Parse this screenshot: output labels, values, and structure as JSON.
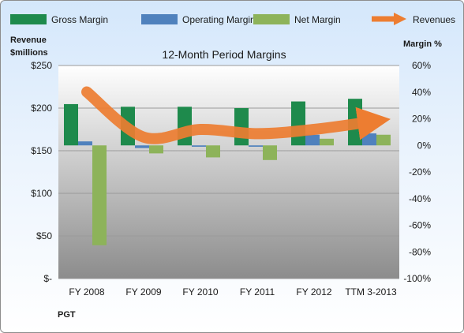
{
  "chart_data": {
    "type": "bar",
    "title": "12-Month Period Margins",
    "company": "PGT",
    "left_axis": {
      "label_line1": "Revenue",
      "label_line2": "$millions",
      "min": 0,
      "max": 250,
      "ticks": [
        0,
        50,
        100,
        150,
        200,
        250
      ],
      "tick_labels": [
        "$-",
        "$50",
        "$100",
        "$150",
        "$200",
        "$250"
      ]
    },
    "right_axis": {
      "label": "Margin %",
      "min": -100,
      "max": 60,
      "ticks": [
        -100,
        -80,
        -60,
        -40,
        -20,
        0,
        20,
        40,
        60
      ],
      "tick_labels": [
        "-100%",
        "-80%",
        "-60%",
        "-40%",
        "-20%",
        "0%",
        "20%",
        "40%",
        "60%"
      ]
    },
    "categories": [
      "FY 2008",
      "FY 2009",
      "FY 2010",
      "FY 2011",
      "FY 2012",
      "TTM 3-2013"
    ],
    "series": [
      {
        "name": "Gross Margin",
        "kind": "bar",
        "axis": "right",
        "color": "#1e8a4c",
        "values": [
          31,
          29,
          29,
          28,
          33,
          35
        ]
      },
      {
        "name": "Operating Margin",
        "kind": "bar",
        "axis": "right",
        "color": "#4f81bd",
        "values": [
          3,
          -2,
          -1,
          -1,
          8,
          9
        ]
      },
      {
        "name": "Net Margin",
        "kind": "bar",
        "axis": "right",
        "color": "#8db35a",
        "values": [
          -75,
          -6,
          -9,
          -11,
          5,
          8
        ]
      },
      {
        "name": "Revenues",
        "kind": "line",
        "axis": "left",
        "color": "#ed7d31",
        "values": [
          219,
          166,
          175,
          170,
          175,
          184
        ]
      }
    ],
    "legend_position": "top",
    "grid": true
  }
}
